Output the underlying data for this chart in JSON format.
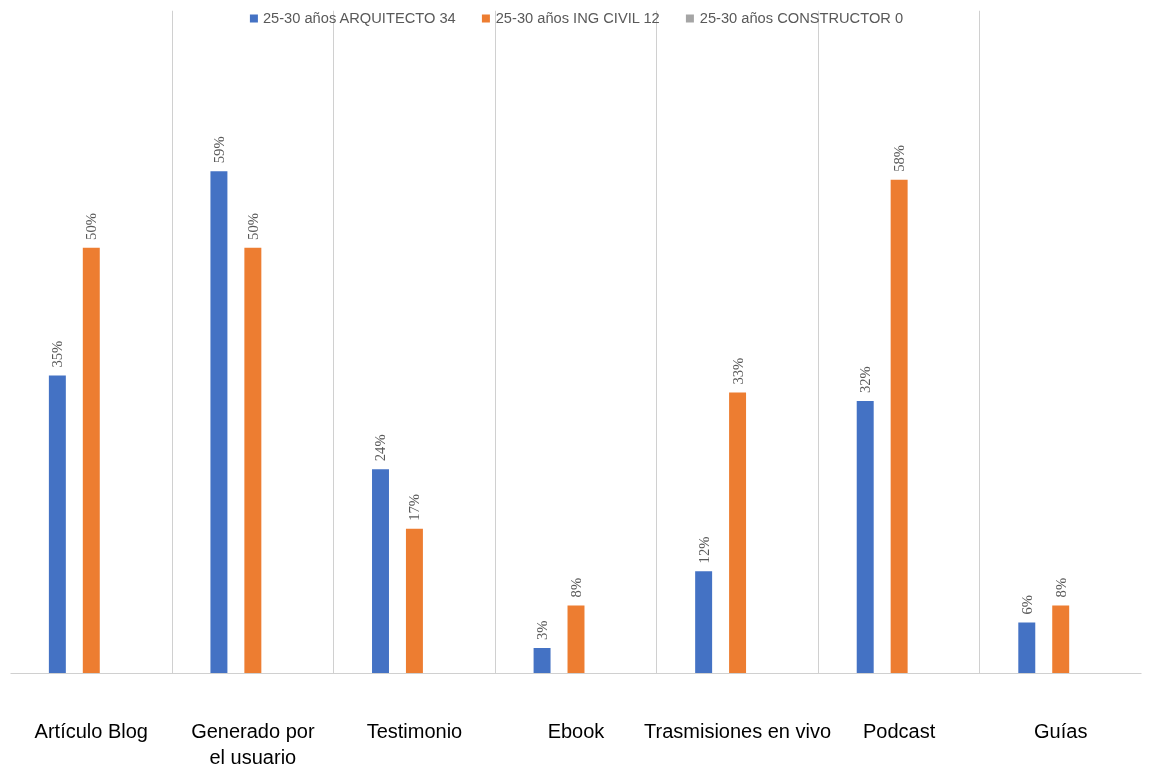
{
  "chart_data": {
    "type": "bar",
    "categories": [
      "Artículo Blog",
      "Generado por el usuario",
      "Testimonio",
      "Ebook",
      "Trasmisiones en vivo",
      "Podcast",
      "Guías"
    ],
    "series": [
      {
        "name": "25-30 años ARQUITECTO 34",
        "color": "#4472c4",
        "values": [
          35,
          59,
          24,
          3,
          12,
          32,
          6
        ],
        "value_labels": [
          "35%",
          "59%",
          "24%",
          "3%",
          "12%",
          "32%",
          "6%"
        ]
      },
      {
        "name": "25-30 años ING CIVIL 12",
        "color": "#ed7d31",
        "values": [
          50,
          50,
          17,
          8,
          33,
          58,
          8
        ],
        "value_labels": [
          "50%",
          "50%",
          "17%",
          "8%",
          "33%",
          "58%",
          "8%"
        ]
      },
      {
        "name": "25-30 años CONSTRUCTOR 0",
        "color": "#a5a5a5",
        "values": [
          null,
          null,
          null,
          null,
          null,
          null,
          null
        ]
      }
    ],
    "grid": "x",
    "legend": "top"
  }
}
